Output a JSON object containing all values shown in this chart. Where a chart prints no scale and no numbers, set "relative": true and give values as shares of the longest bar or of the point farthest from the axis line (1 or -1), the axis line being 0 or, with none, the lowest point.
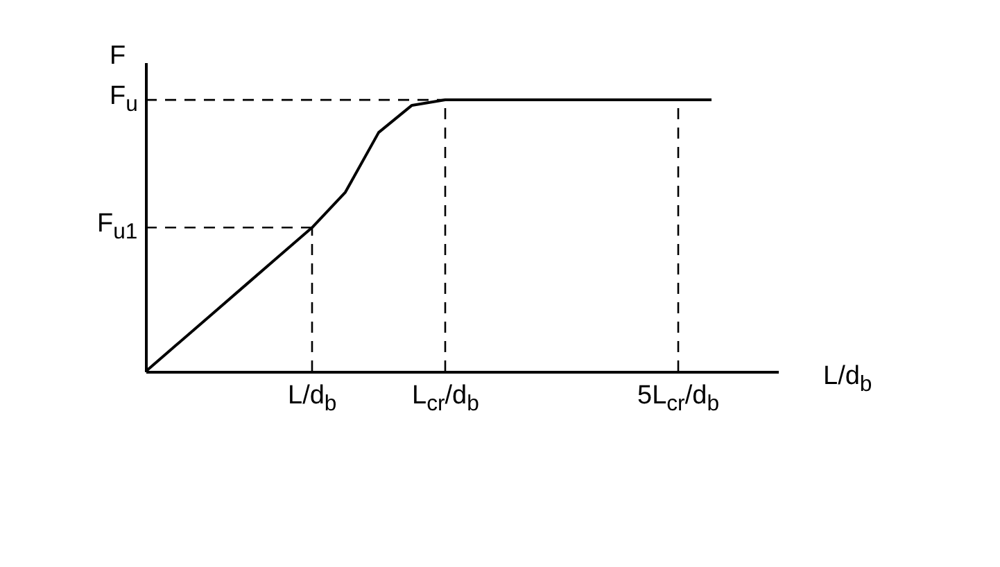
{
  "chart_data": {
    "type": "line",
    "relative": true,
    "xlabel": "L/d$_{b}$",
    "ylabel": "F",
    "color": "#000000",
    "categories": [
      null,
      null,
      null,
      null,
      null,
      "L/d$_{b}$",
      null,
      null,
      null,
      "L$_{cr}$/d$_{b}$",
      null,
      null,
      null,
      null,
      null,
      null,
      "5L$_{cr}$/d$_{b}$",
      null,
      null,
      null
    ],
    "values": [
      0,
      0.106,
      0.212,
      0.318,
      0.424,
      0.53,
      0.66,
      0.88,
      0.98,
      1,
      1,
      1,
      1,
      1,
      1,
      1,
      1,
      1,
      null,
      null
    ],
    "ref_lines": [
      {
        "axis": "y",
        "value": 1,
        "label": "F$_{u}$",
        "line_style": "dashed"
      },
      {
        "axis": "y",
        "value": 0.53,
        "label": "F$_{u1}$",
        "line_style": "dashed"
      },
      {
        "axis": "x",
        "value": "L/d$_{b}$",
        "line_style": "dashed"
      },
      {
        "axis": "x",
        "value": "L$_{cr}$/d$_{b}$",
        "line_style": "dashed"
      },
      {
        "axis": "x",
        "value": "5L$_{cr}$/d$_{b}$",
        "line_style": "dashed"
      }
    ]
  }
}
